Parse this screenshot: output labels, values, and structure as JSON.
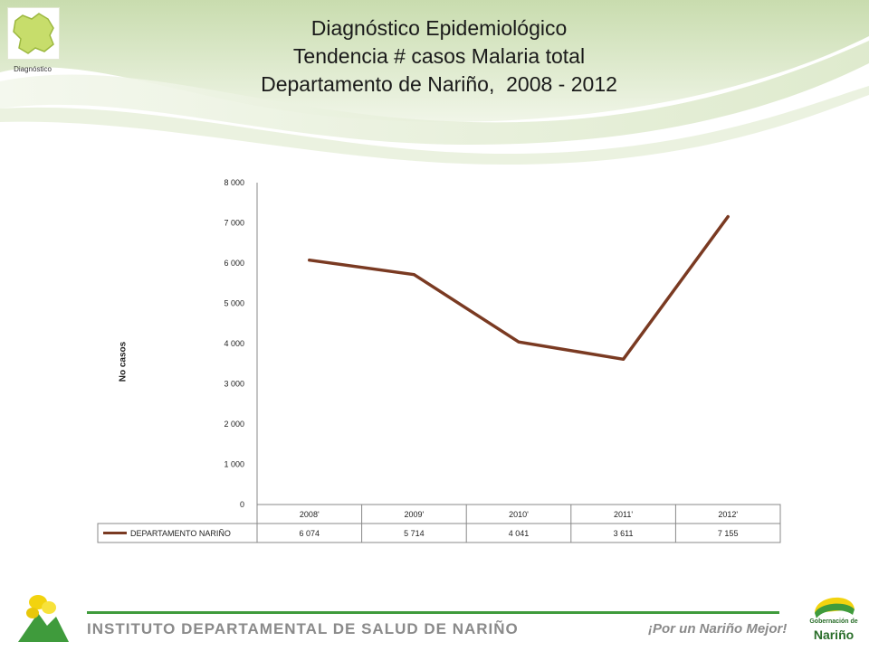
{
  "header": {
    "logo_label": "Diagnóstico",
    "title_lines": [
      "Diagnóstico Epidemiológico",
      "Tendencia # casos Malaria total",
      "Departamento de Nariño,  2008 - 2012"
    ]
  },
  "chart_data": {
    "type": "line",
    "ylabel": "No casos",
    "ylim": [
      0,
      8000
    ],
    "yticks": [
      0,
      1000,
      2000,
      3000,
      4000,
      5000,
      6000,
      7000,
      8000
    ],
    "ytick_labels": [
      "0",
      "1 000",
      "2 000",
      "3 000",
      "4 000",
      "5 000",
      "6 000",
      "7 000",
      "8 000"
    ],
    "categories": [
      "2008'",
      "2009'",
      "2010'",
      "2011'",
      "2012'"
    ],
    "series": [
      {
        "name": "DEPARTAMENTO NARIÑO",
        "values": [
          6074,
          5714,
          4041,
          3611,
          7155
        ],
        "value_labels": [
          "6 074",
          "5 714",
          "4 041",
          "3 611",
          "7 155"
        ],
        "color": "#7a3a22"
      }
    ],
    "grid": false,
    "legend": "data-table-below"
  },
  "footer": {
    "institute": "INSTITUTO DEPARTAMENTAL DE SALUD DE NARIÑO",
    "slogan": "¡Por un Nariño Mejor!",
    "gob_line1": "Gobernación de",
    "gob_line2": "Nariño"
  },
  "colors": {
    "green_accent": "#3f9b3c",
    "header_swoosh": "#c9dcae",
    "series_line": "#7a3a22"
  }
}
